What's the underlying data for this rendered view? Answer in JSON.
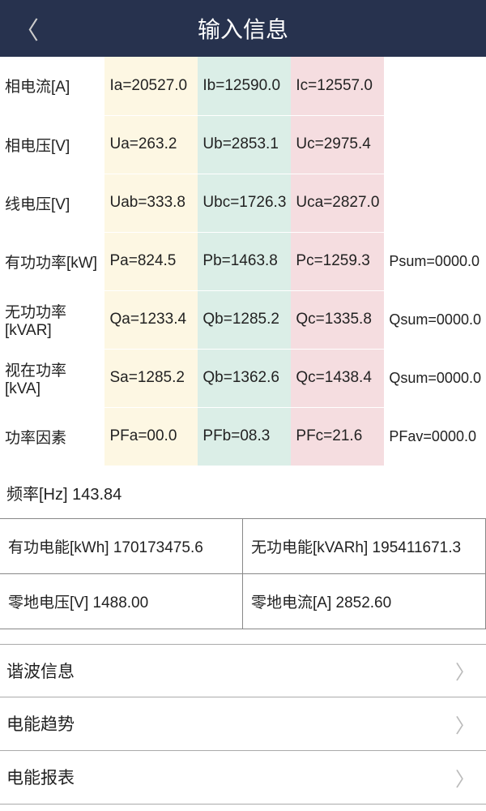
{
  "header": {
    "title": "输入信息"
  },
  "rows": [
    {
      "label": "相电流[A]",
      "a": "Ia=20527.0",
      "b": "Ib=12590.0",
      "c": "Ic=12557.0",
      "sum": ""
    },
    {
      "label": "相电压[V]",
      "a": "Ua=263.2",
      "b": "Ub=2853.1",
      "c": "Uc=2975.4",
      "sum": ""
    },
    {
      "label": "线电压[V]",
      "a": "Uab=333.8",
      "b": "Ubc=1726.3",
      "c": "Uca=2827.0",
      "sum": ""
    },
    {
      "label": "有功功率[kW]",
      "a": "Pa=824.5",
      "b": "Pb=1463.8",
      "c": "Pc=1259.3",
      "sum": "Psum=0000.0"
    },
    {
      "label": "无功功率[kVAR]",
      "a": "Qa=1233.4",
      "b": "Qb=1285.2",
      "c": "Qc=1335.8",
      "sum": "Qsum=0000.0"
    },
    {
      "label": "视在功率[kVA]",
      "a": "Sa=1285.2",
      "b": "Qb=1362.6",
      "c": "Qc=1438.4",
      "sum": "Qsum=0000.0"
    },
    {
      "label": "功率因素",
      "a": "PFa=00.0",
      "b": "PFb=08.3",
      "c": "PFc=21.6",
      "sum": "PFav=0000.0"
    }
  ],
  "frequency": {
    "label": "频率[Hz]",
    "value": "143.84"
  },
  "grid": {
    "cell1": "有功电能[kWh] 170173475.6",
    "cell2": "无功电能[kVARh] 195411671.3",
    "cell3": "零地电压[V] 1488.00",
    "cell4": "零地电流[A] 2852.60"
  },
  "links": [
    {
      "label": "谐波信息"
    },
    {
      "label": "电能趋势"
    },
    {
      "label": "电能报表"
    }
  ],
  "colors": {
    "header_bg": "#27324e",
    "col_a": "#fdf7e3",
    "col_b": "#dbeee7",
    "col_c": "#f5dde0"
  }
}
